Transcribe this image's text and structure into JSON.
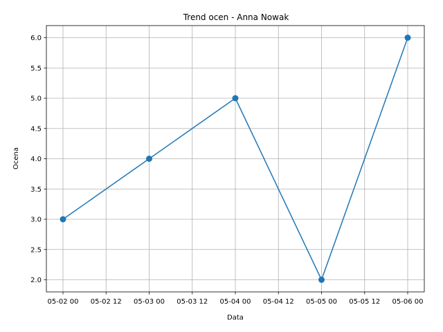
{
  "chart_data": {
    "type": "line",
    "title": "Trend ocen - Anna Nowak",
    "xlabel": "Data",
    "ylabel": "Ocena",
    "grid": true,
    "x_ticks": [
      "05-02 00",
      "05-02 12",
      "05-03 00",
      "05-03 12",
      "05-04 00",
      "05-04 12",
      "05-05 00",
      "05-05 12",
      "05-06 00"
    ],
    "y_ticks": [
      2.0,
      2.5,
      3.0,
      3.5,
      4.0,
      4.5,
      5.0,
      5.5,
      6.0
    ],
    "y_tick_labels": [
      "2.0",
      "2.5",
      "3.0",
      "3.5",
      "4.0",
      "4.5",
      "5.0",
      "5.5",
      "6.0"
    ],
    "ylim": [
      1.8,
      6.2
    ],
    "series": [
      {
        "color": "#1f77b4",
        "marker": "circle",
        "x": [
          "05-02 00",
          "05-03 00",
          "05-04 00",
          "05-05 00",
          "05-06 00"
        ],
        "values": [
          3,
          4,
          5,
          2,
          6
        ]
      }
    ]
  }
}
